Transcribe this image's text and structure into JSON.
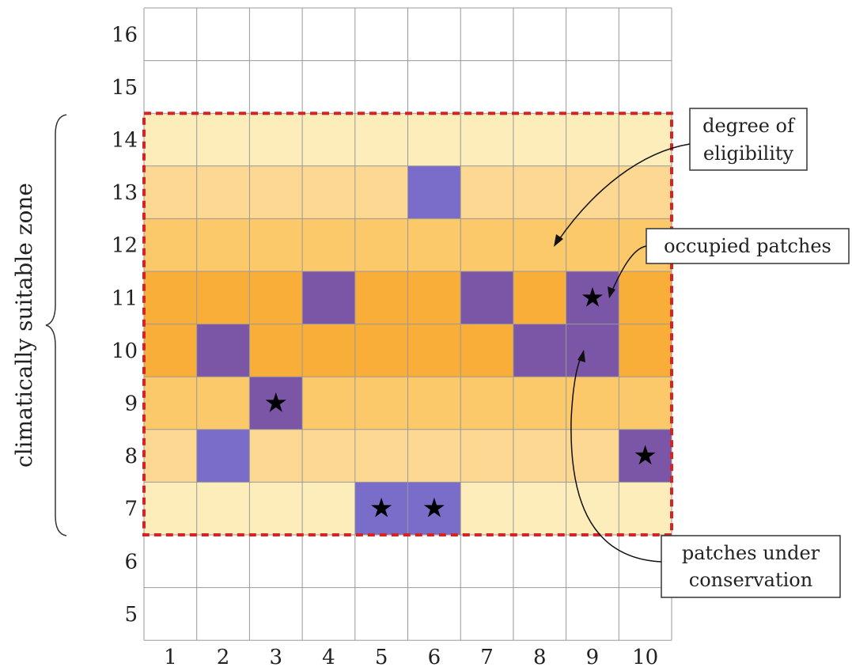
{
  "diagram": {
    "columns": [
      "1",
      "2",
      "3",
      "4",
      "5",
      "6",
      "7",
      "8",
      "9",
      "10"
    ],
    "rows": [
      "16",
      "15",
      "14",
      "13",
      "12",
      "11",
      "10",
      "9",
      "8",
      "7",
      "6",
      "5"
    ],
    "side_label": "climatically suitable zone",
    "zone_rows": [
      "14",
      "13",
      "12",
      "11",
      "10",
      "9",
      "8",
      "7"
    ],
    "eligibility_colors": {
      "14": "#fdedbb",
      "13": "#fcd892",
      "12": "#fbc86a",
      "11": "#f9ae3a",
      "10": "#f9ae3a",
      "9": "#fbc86a",
      "8": "#fcd892",
      "7": "#fdedbb"
    },
    "patch_colors": {
      "occupied": "#7b55a6",
      "conservation": "#7a6cc9",
      "zone_border": "#d42424",
      "grid": "#999999"
    },
    "patches": [
      {
        "col": 6,
        "row": 13,
        "kind": "conservation",
        "star": false
      },
      {
        "col": 4,
        "row": 11,
        "kind": "occupied",
        "star": false
      },
      {
        "col": 7,
        "row": 11,
        "kind": "occupied",
        "star": false
      },
      {
        "col": 9,
        "row": 11,
        "kind": "occupied",
        "star": true
      },
      {
        "col": 2,
        "row": 10,
        "kind": "occupied",
        "star": false
      },
      {
        "col": 8,
        "row": 10,
        "kind": "occupied",
        "star": false
      },
      {
        "col": 9,
        "row": 10,
        "kind": "occupied",
        "star": false
      },
      {
        "col": 3,
        "row": 9,
        "kind": "occupied",
        "star": true
      },
      {
        "col": 2,
        "row": 8,
        "kind": "conservation",
        "star": false
      },
      {
        "col": 10,
        "row": 8,
        "kind": "occupied",
        "star": true
      },
      {
        "col": 5,
        "row": 7,
        "kind": "conservation",
        "star": true
      },
      {
        "col": 6,
        "row": 7,
        "kind": "conservation",
        "star": true
      }
    ],
    "annotations": {
      "eligibility": [
        "degree of",
        "eligibility"
      ],
      "occupied": [
        "occupied patches"
      ],
      "conservation": [
        "patches under",
        "conservation"
      ]
    }
  }
}
